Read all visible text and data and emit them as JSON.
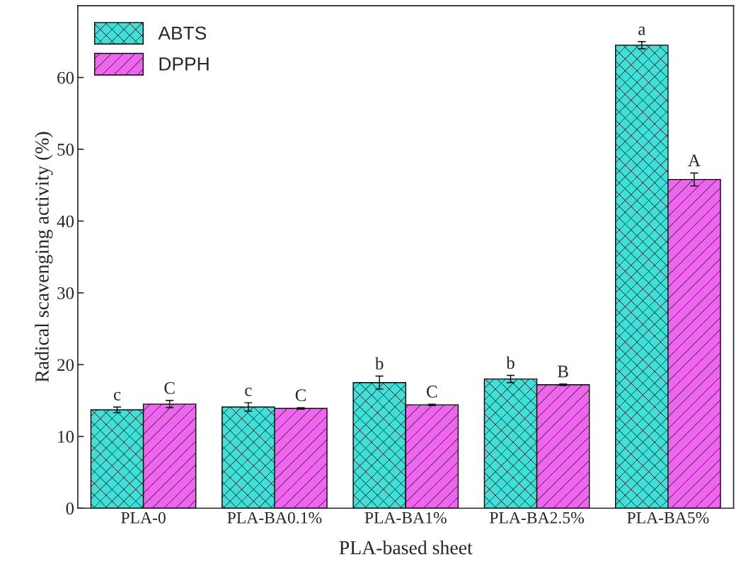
{
  "chart_data": {
    "type": "bar",
    "xlabel": "PLA-based sheet",
    "ylabel": "Radical scavenging activity (%)",
    "categories": [
      "PLA-0",
      "PLA-BA0.1%",
      "PLA-BA1%",
      "PLA-BA2.5%",
      "PLA-BA5%"
    ],
    "series": [
      {
        "name": "ABTS",
        "color": "#40e0d8",
        "values": [
          13.7,
          14.1,
          17.5,
          18.0,
          64.5
        ],
        "errors": [
          0.4,
          0.6,
          0.9,
          0.5,
          0.5
        ],
        "value_labels": [
          "c",
          "c",
          "b",
          "b",
          "a"
        ]
      },
      {
        "name": "DPPH",
        "color": "#ee66ee",
        "values": [
          14.5,
          13.9,
          14.4,
          17.2,
          45.8
        ],
        "errors": [
          0.5,
          0.1,
          0.1,
          0.1,
          0.9
        ],
        "value_labels": [
          "C",
          "C",
          "C",
          "B",
          "A"
        ]
      }
    ],
    "ylim": [
      0,
      70
    ],
    "yticks": [
      0,
      10,
      20,
      30,
      40,
      50,
      60
    ],
    "grid": false,
    "legend": "top left"
  }
}
